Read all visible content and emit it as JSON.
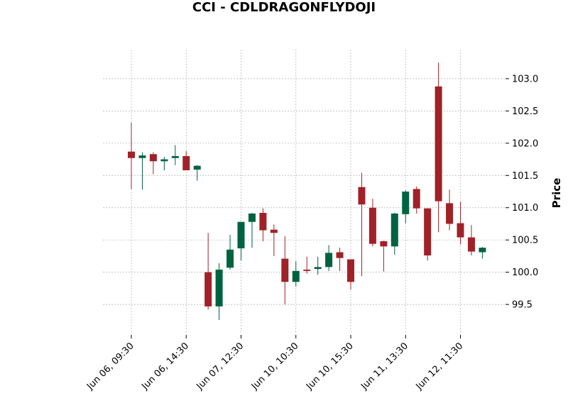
{
  "chart_data": {
    "type": "candlestick",
    "title": "CCI - CDLDRAGONFLYDOJI",
    "ylabel": "Price",
    "xlabel": "",
    "ylim": [
      99.05,
      103.45
    ],
    "y_ticks": [
      99.5,
      100.0,
      100.5,
      101.0,
      101.5,
      102.0,
      102.5,
      103.0
    ],
    "y_tick_labels": [
      "99.5",
      "100.0",
      "100.5",
      "101.0",
      "101.5",
      "102.0",
      "102.5",
      "103.0"
    ],
    "x_tick_labels": [
      "Jun 06, 09:30",
      "Jun 06, 14:30",
      "Jun 07, 12:30",
      "Jun 10, 10:30",
      "Jun 10, 15:30",
      "Jun 11, 13:30",
      "Jun 12, 11:30"
    ],
    "x_tick_indices": [
      0,
      5,
      10,
      15,
      20,
      25,
      30
    ],
    "grid": true,
    "colors": {
      "up": "#006340",
      "down": "#a02128",
      "grid": "#b0b0b0"
    },
    "candles": [
      {
        "o": 101.87,
        "h": 102.32,
        "l": 101.29,
        "c": 101.77
      },
      {
        "o": 101.77,
        "h": 101.86,
        "l": 101.28,
        "c": 101.81
      },
      {
        "o": 101.83,
        "h": 101.86,
        "l": 101.52,
        "c": 101.72
      },
      {
        "o": 101.72,
        "h": 101.79,
        "l": 101.58,
        "c": 101.75
      },
      {
        "o": 101.77,
        "h": 101.97,
        "l": 101.66,
        "c": 101.8
      },
      {
        "o": 101.8,
        "h": 101.88,
        "l": 101.58,
        "c": 101.58
      },
      {
        "o": 101.59,
        "h": 101.66,
        "l": 101.42,
        "c": 101.65
      },
      {
        "o": 100.0,
        "h": 100.61,
        "l": 99.42,
        "c": 99.47
      },
      {
        "o": 99.47,
        "h": 100.14,
        "l": 99.26,
        "c": 100.04
      },
      {
        "o": 100.07,
        "h": 100.58,
        "l": 100.04,
        "c": 100.35
      },
      {
        "o": 100.37,
        "h": 100.78,
        "l": 100.18,
        "c": 100.78
      },
      {
        "o": 100.78,
        "h": 100.92,
        "l": 100.38,
        "c": 100.91
      },
      {
        "o": 100.92,
        "h": 100.99,
        "l": 100.48,
        "c": 100.65
      },
      {
        "o": 100.66,
        "h": 100.74,
        "l": 100.25,
        "c": 100.61
      },
      {
        "o": 100.21,
        "h": 100.56,
        "l": 99.5,
        "c": 99.85
      },
      {
        "o": 99.85,
        "h": 100.17,
        "l": 99.78,
        "c": 100.02
      },
      {
        "o": 100.04,
        "h": 100.24,
        "l": 99.98,
        "c": 100.02
      },
      {
        "o": 100.05,
        "h": 100.24,
        "l": 99.96,
        "c": 100.08
      },
      {
        "o": 100.08,
        "h": 100.42,
        "l": 100.02,
        "c": 100.3
      },
      {
        "o": 100.31,
        "h": 100.38,
        "l": 100.02,
        "c": 100.22
      },
      {
        "o": 100.2,
        "h": 100.2,
        "l": 99.73,
        "c": 99.85
      },
      {
        "o": 101.32,
        "h": 101.54,
        "l": 99.94,
        "c": 101.05
      },
      {
        "o": 101.0,
        "h": 101.14,
        "l": 100.4,
        "c": 100.44
      },
      {
        "o": 100.48,
        "h": 100.49,
        "l": 100.01,
        "c": 100.4
      },
      {
        "o": 100.4,
        "h": 100.92,
        "l": 100.27,
        "c": 100.91
      },
      {
        "o": 100.9,
        "h": 101.27,
        "l": 100.76,
        "c": 101.25
      },
      {
        "o": 101.29,
        "h": 101.33,
        "l": 100.91,
        "c": 100.99
      },
      {
        "o": 100.99,
        "h": 100.99,
        "l": 100.18,
        "c": 100.26
      },
      {
        "o": 102.88,
        "h": 103.25,
        "l": 100.62,
        "c": 101.1
      },
      {
        "o": 101.07,
        "h": 101.28,
        "l": 100.65,
        "c": 100.75
      },
      {
        "o": 100.76,
        "h": 101.09,
        "l": 100.43,
        "c": 100.54
      },
      {
        "o": 100.54,
        "h": 100.73,
        "l": 100.26,
        "c": 100.32
      },
      {
        "o": 100.31,
        "h": 100.39,
        "l": 100.21,
        "c": 100.38
      }
    ]
  }
}
